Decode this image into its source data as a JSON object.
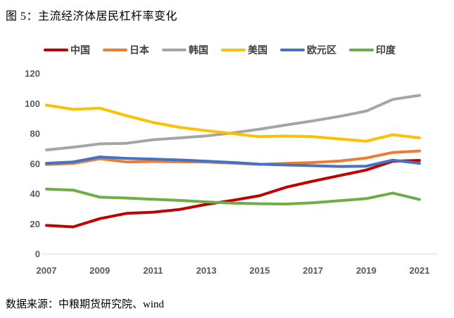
{
  "page": {
    "title": "图 5：主流经济体居民杠杆率变化",
    "source_note": "数据来源：中粮期货研究院、wind"
  },
  "chart_data": {
    "type": "line",
    "title": "主流经济体居民杠杆率变化",
    "x": [
      2007,
      2008,
      2009,
      2010,
      2011,
      2012,
      2013,
      2014,
      2015,
      2016,
      2017,
      2018,
      2019,
      2020,
      2021
    ],
    "xtick_labels": [
      "2007",
      "2009",
      "2011",
      "2013",
      "2015",
      "2017",
      "2019",
      "2021"
    ],
    "ylim": [
      0,
      120
    ],
    "ytick_step": 20,
    "ytick_labels": [
      "0",
      "20",
      "40",
      "60",
      "80",
      "100",
      "120"
    ],
    "grid": false,
    "legend_position": "top",
    "axis_label_color": "#595959",
    "axis_line_color": "#d9d9d9",
    "series": [
      {
        "id": "china",
        "name": "中国",
        "color": "#C00000",
        "values": [
          19.0,
          18.0,
          23.5,
          27.0,
          27.8,
          29.6,
          33.0,
          35.7,
          38.8,
          44.4,
          48.4,
          52.1,
          55.8,
          61.7,
          62.2
        ]
      },
      {
        "id": "japan",
        "name": "日本",
        "color": "#ED7D31",
        "values": [
          59.5,
          60.2,
          63.3,
          61.2,
          61.5,
          61.3,
          61.2,
          60.4,
          59.6,
          60.2,
          60.8,
          61.8,
          63.8,
          67.5,
          68.5
        ]
      },
      {
        "id": "korea",
        "name": "韩国",
        "color": "#A5A5A5",
        "values": [
          69.2,
          71.0,
          73.2,
          73.6,
          76.0,
          77.2,
          78.5,
          80.5,
          83.0,
          85.8,
          88.5,
          91.5,
          95.0,
          102.8,
          105.5
        ]
      },
      {
        "id": "usa",
        "name": "美国",
        "color": "#FFC000",
        "values": [
          99.0,
          96.2,
          97.0,
          92.0,
          87.5,
          84.2,
          82.0,
          80.0,
          78.0,
          78.5,
          78.0,
          76.5,
          75.0,
          79.3,
          77.2
        ]
      },
      {
        "id": "eurozone",
        "name": "欧元区",
        "color": "#4472C4",
        "values": [
          60.3,
          61.2,
          64.5,
          63.6,
          63.1,
          62.5,
          61.7,
          60.8,
          59.7,
          59.2,
          58.7,
          58.2,
          58.4,
          62.4,
          60.3
        ]
      },
      {
        "id": "india",
        "name": "印度",
        "color": "#70AD47",
        "values": [
          43.2,
          42.5,
          37.8,
          37.2,
          36.4,
          35.6,
          34.6,
          33.8,
          33.4,
          33.2,
          34.0,
          35.4,
          36.8,
          40.5,
          36.2
        ]
      }
    ]
  }
}
